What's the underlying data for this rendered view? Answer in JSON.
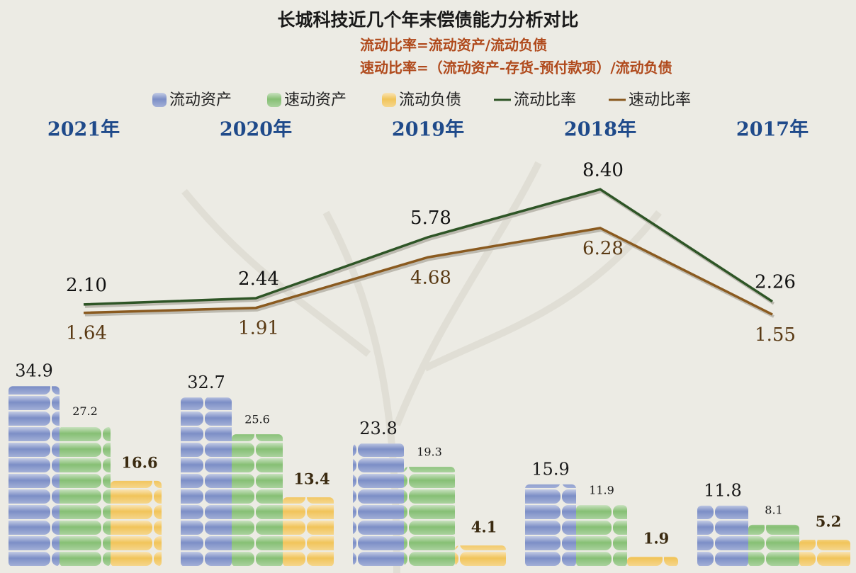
{
  "chart_data": {
    "type": "bar-line",
    "title": "长城科技近几个年末偿债能力分析对比",
    "subtitle": [
      "流动比率=流动资产/流动负债",
      "速动比率=（流动资产-存货-预付款项）/流动负债"
    ],
    "categories": [
      "2021年",
      "2020年",
      "2019年",
      "2018年",
      "2017年"
    ],
    "series": [
      {
        "name": "流动资产",
        "type": "bar",
        "color": "#7c8ec6",
        "values": [
          34.9,
          32.7,
          23.8,
          15.9,
          11.8
        ]
      },
      {
        "name": "速动资产",
        "type": "bar",
        "color": "#86bf74",
        "values": [
          27.2,
          25.6,
          19.3,
          11.9,
          8.1
        ]
      },
      {
        "name": "流动负债",
        "type": "bar",
        "color": "#f1c45a",
        "values": [
          16.6,
          13.4,
          4.1,
          1.9,
          5.2
        ]
      },
      {
        "name": "流动比率",
        "type": "line",
        "color": "#2e5526",
        "values": [
          2.1,
          2.44,
          5.78,
          8.4,
          2.26
        ],
        "value_labels": [
          "2.10",
          "2.44",
          "5.78",
          "8.40",
          "2.26"
        ]
      },
      {
        "name": "速动比率",
        "type": "line",
        "color": "#8a5a1f",
        "values": [
          1.64,
          1.91,
          4.68,
          6.28,
          1.55
        ],
        "value_labels": [
          "1.64",
          "1.91",
          "4.68",
          "6.28",
          "1.55"
        ]
      }
    ]
  }
}
